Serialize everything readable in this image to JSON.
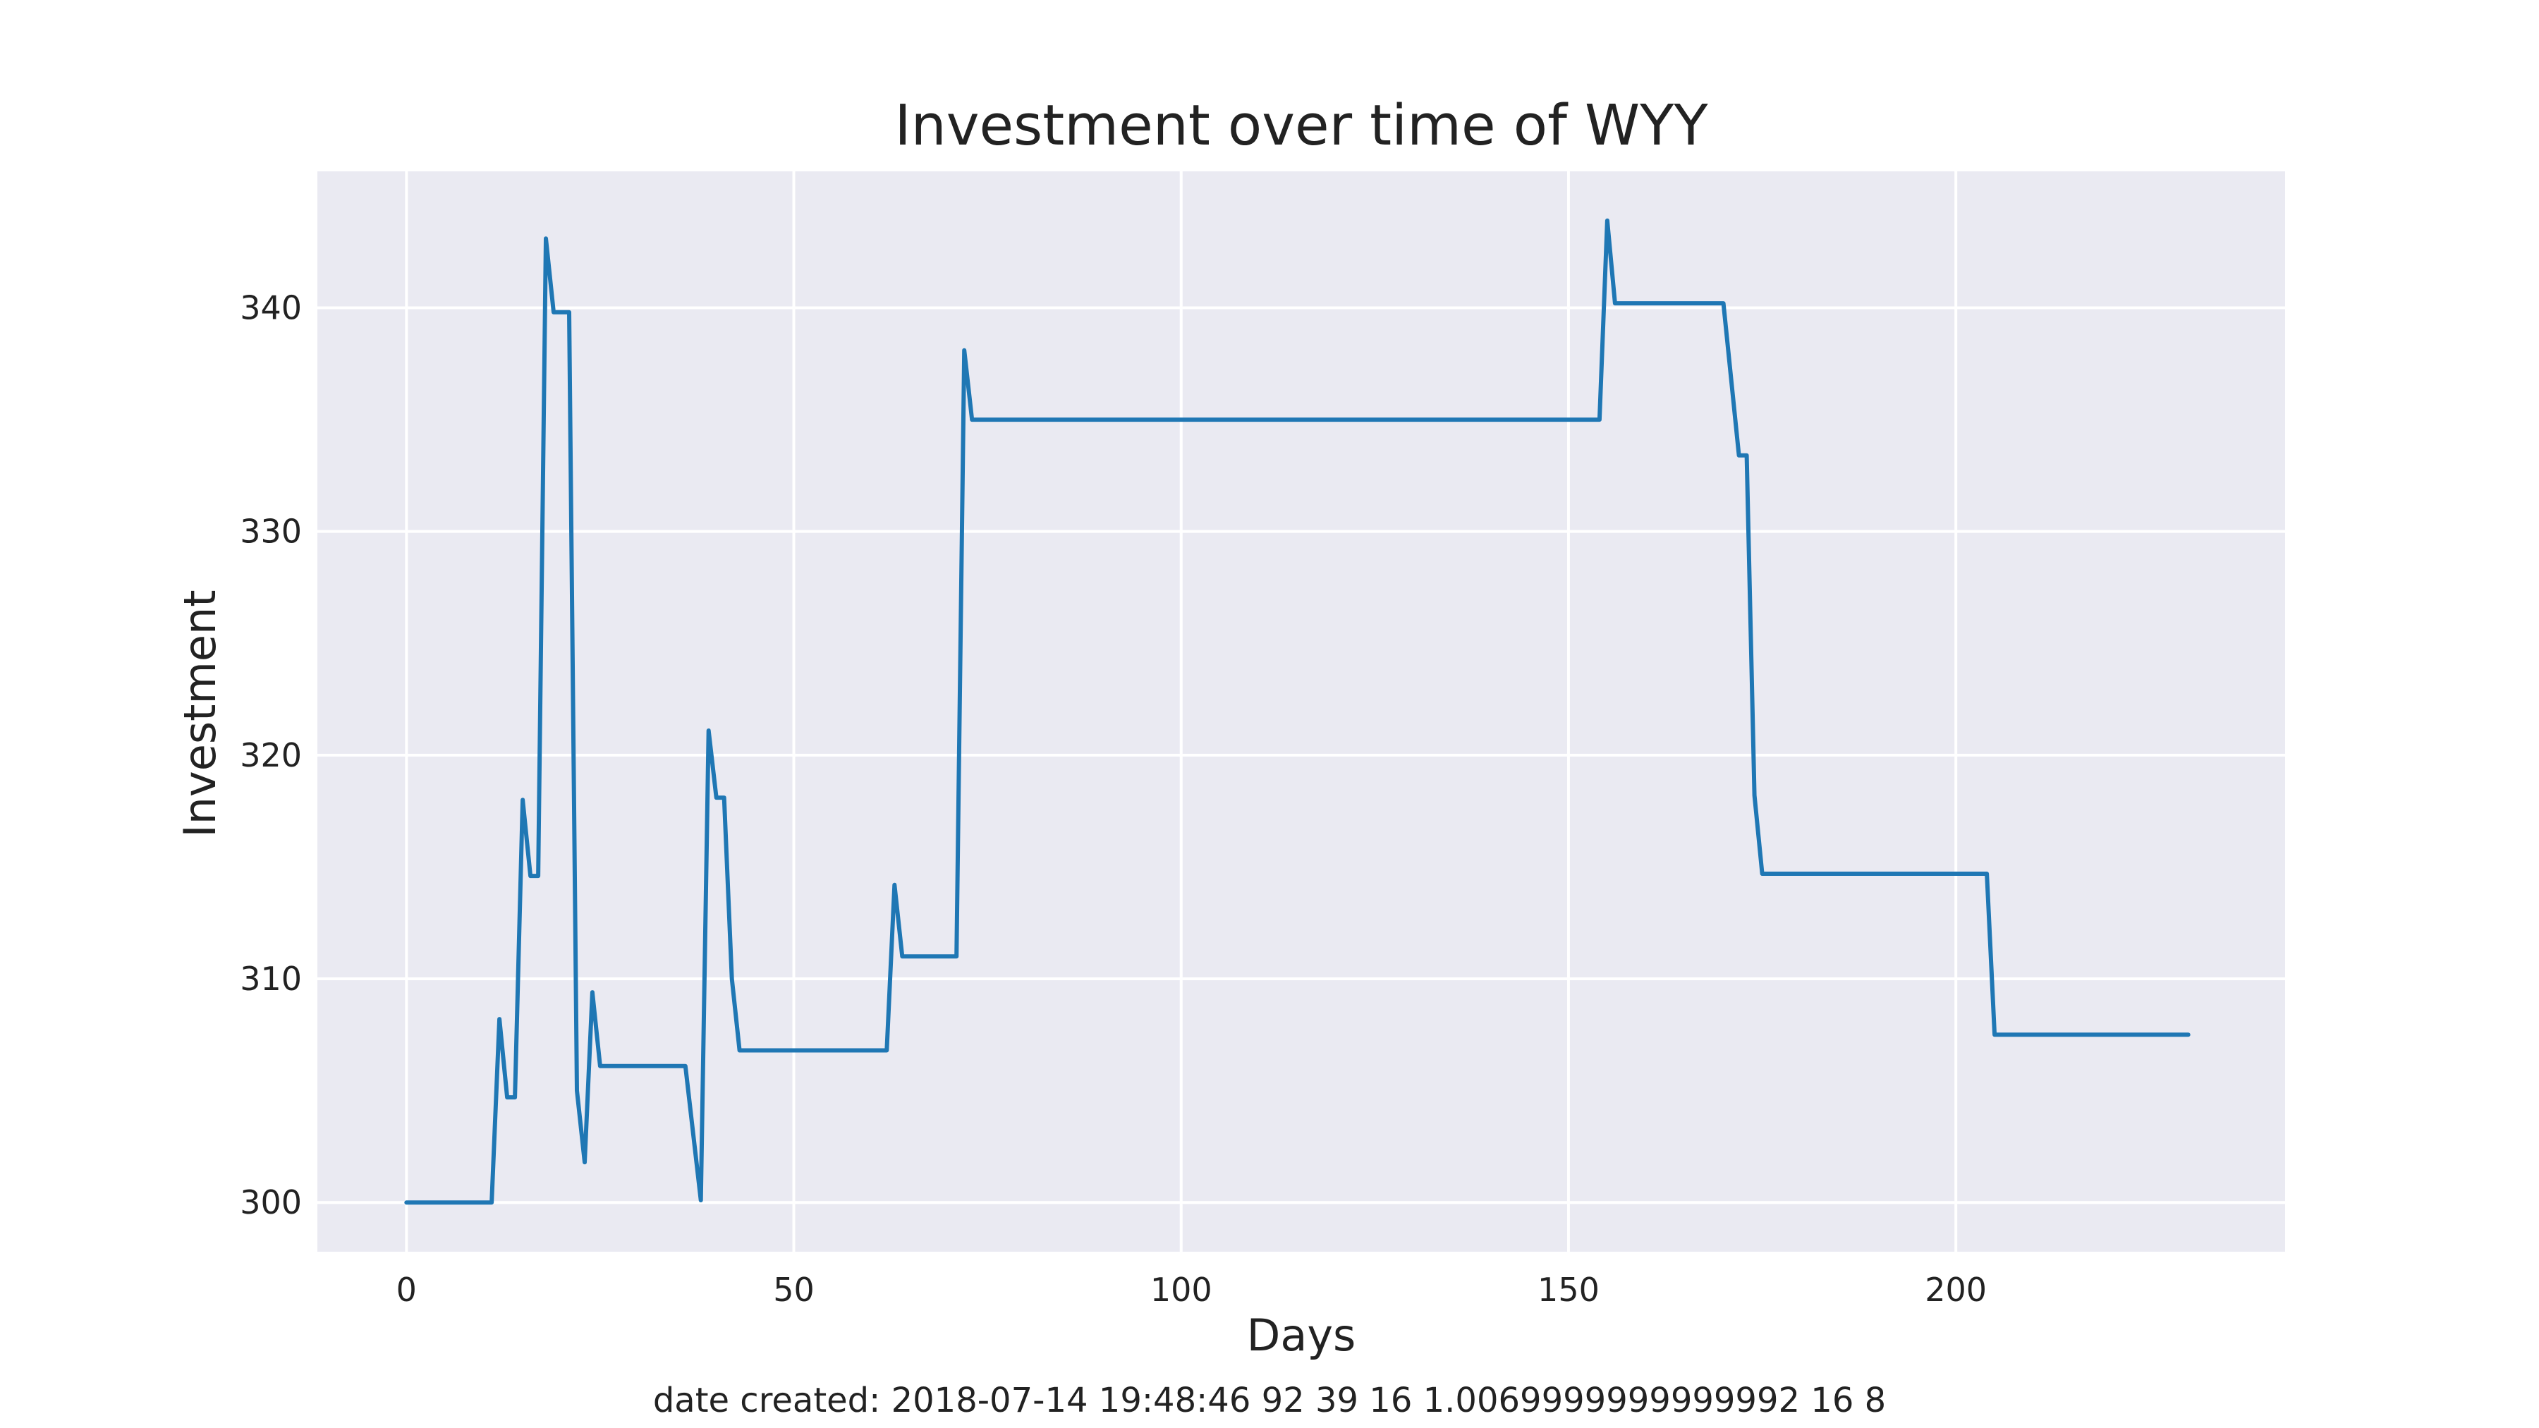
{
  "chart_data": {
    "type": "line",
    "title": "Investment over time of WYY",
    "xlabel": "Days",
    "ylabel": "Investment",
    "footer": "date created: 2018-07-14 19:48:46 92 39 16 1.0069999999999992 16 8",
    "xlim": [
      -11.5,
      242.5
    ],
    "ylim": [
      297.8,
      346.1
    ],
    "xticks": [
      0,
      50,
      100,
      150,
      200
    ],
    "yticks": [
      300,
      310,
      320,
      330,
      340
    ],
    "grid": true,
    "colors": {
      "background": "#eaeaf2",
      "grid": "#ffffff",
      "line": "#1f77b4"
    },
    "series": [
      {
        "x": [
          0,
          11,
          12,
          13,
          14,
          15,
          16,
          17,
          18,
          19,
          20,
          21,
          22,
          23,
          24,
          25,
          35,
          36,
          38,
          39,
          40,
          41,
          42,
          43,
          61,
          62,
          63,
          64,
          70,
          71,
          72,
          73,
          153,
          154,
          155,
          156,
          170,
          172,
          173,
          174,
          175,
          203,
          204,
          205,
          230
        ],
        "y": [
          300,
          300,
          308.2,
          304.7,
          304.7,
          318,
          314.6,
          314.6,
          343.1,
          339.8,
          339.8,
          339.8,
          305,
          301.8,
          309.4,
          306.1,
          306.1,
          306.1,
          300.1,
          321.1,
          318.1,
          318.1,
          310,
          306.8,
          306.8,
          306.8,
          314.2,
          311,
          311,
          311,
          338.1,
          335,
          335,
          335,
          343.9,
          340.2,
          340.2,
          333.4,
          333.4,
          318.2,
          314.7,
          314.7,
          314.7,
          307.5,
          307.5
        ]
      }
    ]
  }
}
